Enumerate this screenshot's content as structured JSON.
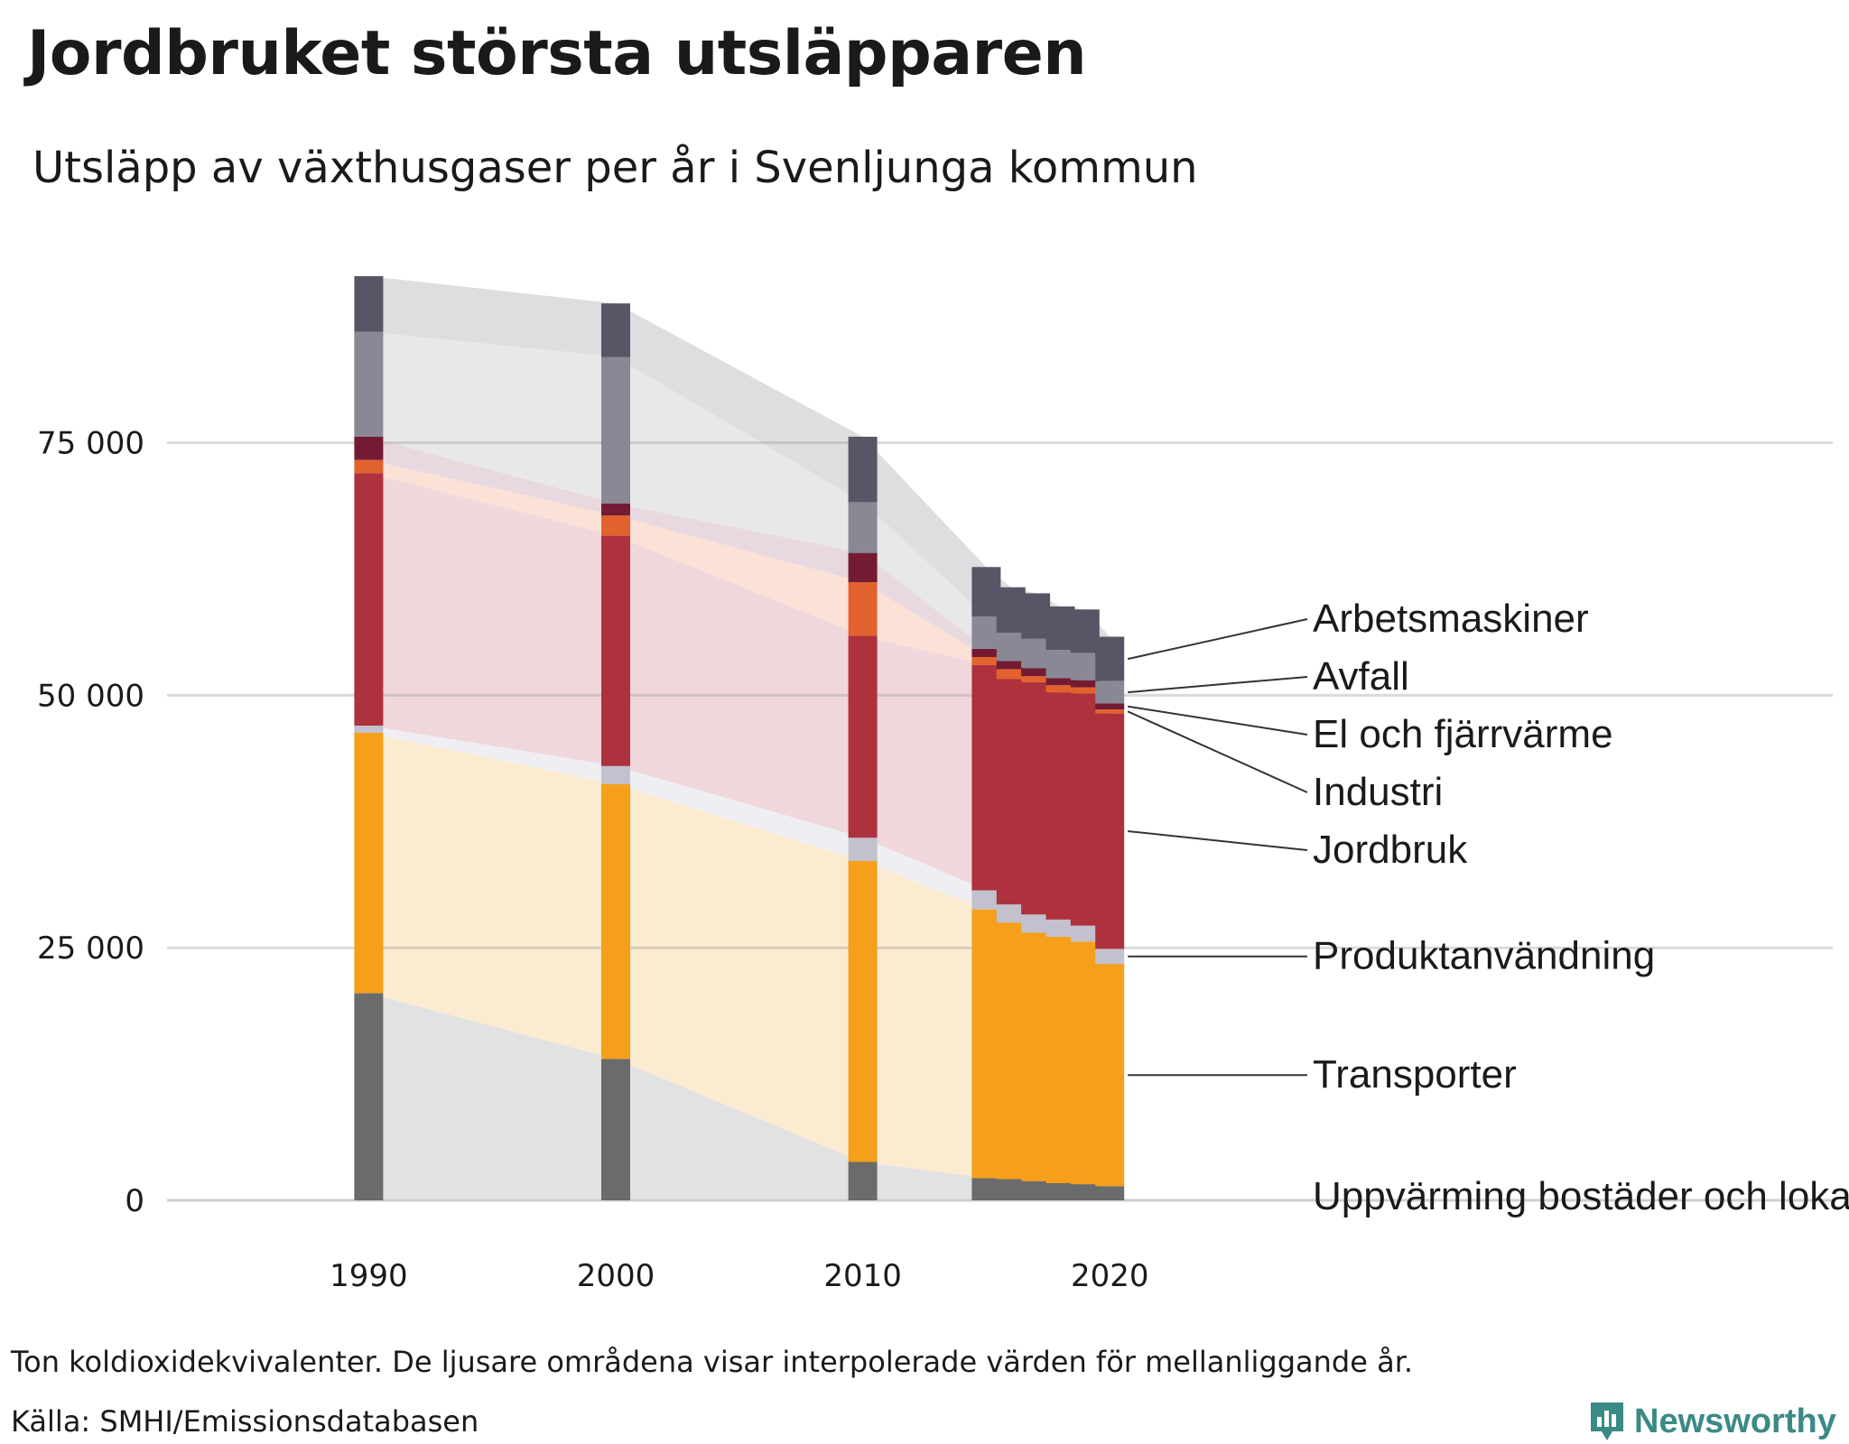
{
  "header": {
    "title": "Jordbruket största utsläpparen",
    "subtitle": "Utsläpp av växthusgaser per år i Svenljunga kommun"
  },
  "footer": {
    "note": "Ton koldioxidekvivalenter. De ljusare områdena visar interpolerade värden för mellanliggande år.",
    "source": "Källa: SMHI/Emissionsdatabasen",
    "brand": "Newsworthy"
  },
  "chart_data": {
    "type": "bar",
    "stacked": true,
    "title": "Jordbruket största utsläpparen",
    "subtitle": "Utsläpp av växthusgaser per år i Svenljunga kommun",
    "xlabel": "",
    "ylabel": "",
    "ylim": [
      0,
      91500
    ],
    "xlim": [
      1985.6,
      2026.9
    ],
    "yticks": [
      0,
      25000,
      50000,
      75000
    ],
    "ytick_labels": [
      "0",
      "25 000",
      "50 000",
      "75 000"
    ],
    "xticks": [
      1990,
      2000,
      2010,
      2020
    ],
    "xtick_labels": [
      "1990",
      "2000",
      "2010",
      "2020"
    ],
    "grid": "horizontal",
    "legend": "right, direct labels",
    "years": [
      1990,
      2000,
      2010,
      2015,
      2016,
      2017,
      2018,
      2019,
      2020
    ],
    "series": [
      {
        "name": "Uppvärming bostäder och lokaler",
        "color": "#6b6b6b",
        "area_color": "#e2e2e3",
        "values": [
          20500,
          14000,
          3800,
          2200,
          2100,
          1900,
          1700,
          1600,
          1400
        ]
      },
      {
        "name": "Transporter",
        "color": "#f59f1a",
        "area_color": "#fbebd1",
        "values": [
          25800,
          27200,
          29800,
          26600,
          25400,
          24600,
          24400,
          24000,
          22000
        ]
      },
      {
        "name": "Produktanvändning",
        "color": "#c2c1cd",
        "area_color": "#efeff3",
        "values": [
          700,
          1800,
          2300,
          1900,
          1800,
          1800,
          1700,
          1600,
          1500
        ]
      },
      {
        "name": "Jordbruk",
        "color": "#ad323d",
        "area_color": "#f0d7dc",
        "values": [
          25000,
          22800,
          20000,
          22300,
          22300,
          23000,
          22500,
          23000,
          23300
        ]
      },
      {
        "name": "Industri",
        "color": "#e2622d",
        "area_color": "#fbe1d6",
        "values": [
          1300,
          2000,
          5300,
          800,
          1000,
          600,
          700,
          600,
          400
        ]
      },
      {
        "name": "El och fjärrvärme",
        "color": "#721b33",
        "area_color": "#e8d9e0",
        "values": [
          2300,
          1200,
          2900,
          800,
          800,
          800,
          700,
          700,
          600
        ]
      },
      {
        "name": "Avfall",
        "color": "#8a8895",
        "area_color": "#e8e8eb",
        "values": [
          10400,
          14500,
          5000,
          3200,
          2800,
          2900,
          2800,
          2700,
          2200
        ]
      },
      {
        "name": "Arbetsmaskiner",
        "color": "#575666",
        "area_color": "#dedee0",
        "values": [
          5500,
          5300,
          6500,
          4900,
          4500,
          4500,
          4300,
          4300,
          4400
        ]
      }
    ]
  }
}
